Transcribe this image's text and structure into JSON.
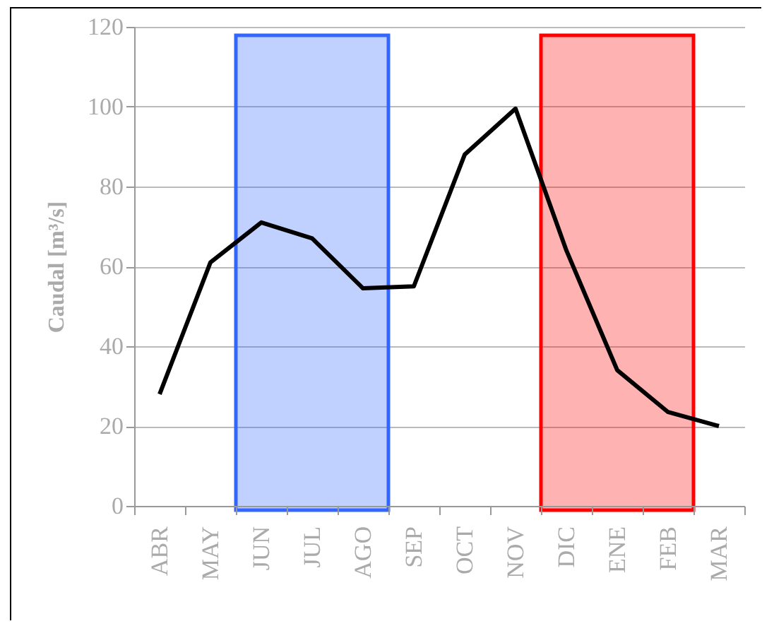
{
  "chart_data": {
    "type": "line",
    "ylabel": "Caudal [m³/s]",
    "categories": [
      "ABR",
      "MAY",
      "JUN",
      "JUL",
      "AGO",
      "SEP",
      "OCT",
      "NOV",
      "DIC",
      "ENE",
      "FEB",
      "MAR"
    ],
    "series": [
      {
        "color": "#000000",
        "values": [
          28,
          61,
          71,
          67,
          54.5,
          55,
          88,
          99.5,
          64,
          34,
          23.5,
          20
        ]
      }
    ],
    "ylim": [
      0,
      120
    ],
    "yticks": [
      0,
      20,
      40,
      60,
      80,
      100,
      120
    ],
    "bands": [
      {
        "axis": "x",
        "from": "JUN",
        "to": "AGO",
        "color": "#3366ff"
      },
      {
        "axis": "x",
        "from": "DIC",
        "to": "FEB",
        "color": "#ff0000"
      }
    ],
    "grid": "y",
    "marker": "none",
    "line_style": "solid"
  }
}
